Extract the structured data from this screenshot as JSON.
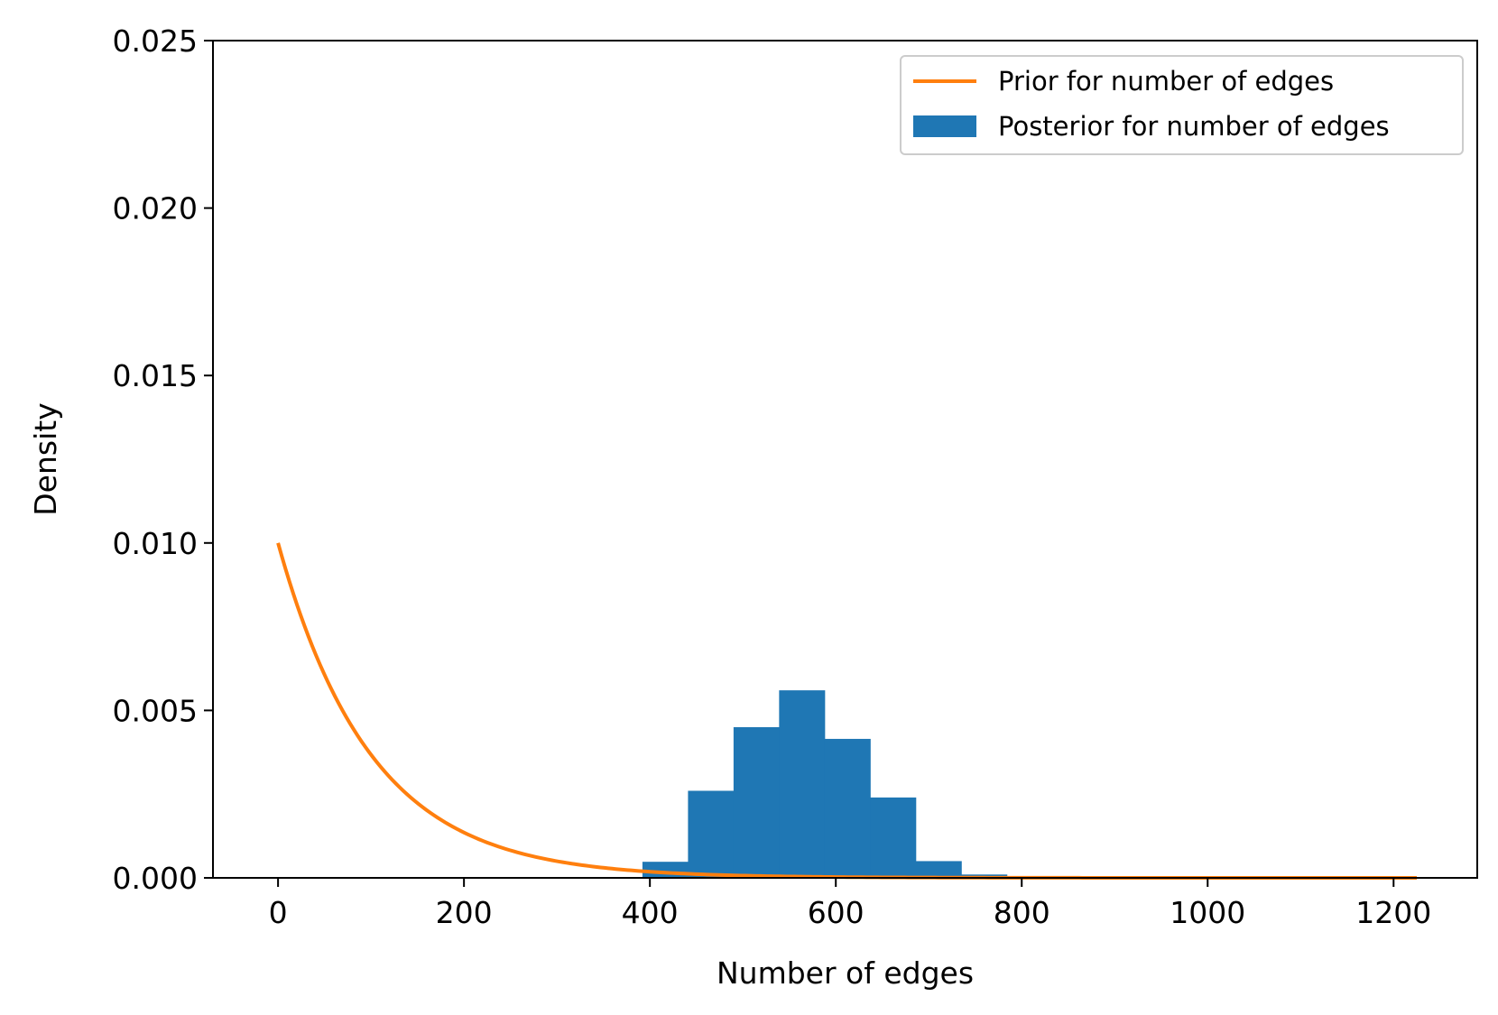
{
  "chart_data": {
    "type": "histogram",
    "title": "",
    "xlabel": "Number of edges",
    "ylabel": "Density",
    "xlim": [
      -70,
      1290
    ],
    "ylim": [
      0,
      0.025
    ],
    "xticks": [
      0,
      200,
      400,
      600,
      800,
      1000,
      1200
    ],
    "yticks": [
      0.0,
      0.005,
      0.01,
      0.015,
      0.02,
      0.025
    ],
    "ytick_labels": [
      "0.000",
      "0.005",
      "0.010",
      "0.015",
      "0.020",
      "0.025"
    ],
    "grid": false,
    "legend_position": "top-right",
    "series": [
      {
        "name": "Prior for number of edges",
        "kind": "line",
        "color": "#ff7f0e",
        "function": "exponential",
        "rate": 0.01,
        "x_range": [
          0,
          1225
        ]
      },
      {
        "name": "Posterior for number of edges",
        "kind": "histogram",
        "color": "#1f77b4",
        "bin_edges": [
          392,
          441,
          490,
          539,
          588,
          637,
          686,
          735,
          784
        ],
        "densities": [
          0.00048,
          0.0026,
          0.0045,
          0.0056,
          0.00415,
          0.0024,
          0.0005,
          0.0001
        ]
      }
    ]
  }
}
